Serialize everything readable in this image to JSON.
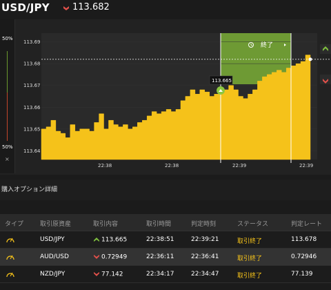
{
  "header": {
    "pair": "USD/JPY",
    "direction_icon": "down-arrow-icon",
    "rate": "113.682"
  },
  "gauge": {
    "top_label": "50%",
    "bottom_label": "50%",
    "close_glyph": "×",
    "high_color": "#6c9a2e",
    "low_color": "#c4452b"
  },
  "chart": {
    "y_ticks": [
      "113.69",
      "113.68",
      "113.67",
      "113.66",
      "113.65",
      "113.64"
    ],
    "x_ticks": [
      "22:38",
      "22:38",
      "22:39",
      "22:39"
    ],
    "entry_label": "113.665",
    "end_label": "終了",
    "area_color": "#f5c21a",
    "window_color": "#6e9a34"
  },
  "chart_data": {
    "type": "area",
    "x_ticks": [
      "22:38",
      "22:38",
      "22:39",
      "22:39"
    ],
    "y_ticks": [
      113.69,
      113.68,
      113.67,
      113.66,
      113.65,
      113.64
    ],
    "ylim": [
      113.636,
      113.694
    ],
    "current_rate": 113.682,
    "entry_rate": 113.665,
    "values": [
      113.65,
      113.651,
      113.654,
      113.649,
      113.648,
      113.646,
      113.652,
      113.649,
      113.65,
      113.65,
      113.649,
      113.653,
      113.657,
      113.65,
      113.654,
      113.652,
      113.651,
      113.652,
      113.65,
      113.651,
      113.653,
      113.654,
      113.656,
      113.658,
      113.657,
      113.658,
      113.659,
      113.658,
      113.659,
      113.663,
      113.665,
      113.668,
      113.666,
      113.668,
      113.667,
      113.665,
      113.666,
      113.667,
      113.668,
      113.67,
      113.668,
      113.665,
      113.664,
      113.666,
      113.668,
      113.672,
      113.674,
      113.675,
      113.676,
      113.677,
      113.676,
      113.678,
      113.679,
      113.68,
      113.681,
      113.684,
      113.682
    ]
  },
  "section": {
    "title": "購入オプション詳細"
  },
  "table": {
    "headers": [
      "タイプ",
      "取引原資産",
      "取引内容",
      "取引時間",
      "判定時刻",
      "ステータス",
      "判定レート"
    ],
    "rows": [
      {
        "type_icon": "gauge-icon",
        "asset": "USD/JPY",
        "direction": "up",
        "content": "113.665",
        "trade_time": "22:38:51",
        "judge_time": "22:39:21",
        "status": "取引終了",
        "judge_rate": "113.678"
      },
      {
        "type_icon": "gauge-icon",
        "asset": "AUD/USD",
        "direction": "down",
        "content": "0.72949",
        "trade_time": "22:36:11",
        "judge_time": "22:36:41",
        "status": "取引終了",
        "judge_rate": "0.72946"
      },
      {
        "type_icon": "gauge-icon",
        "asset": "NZD/JPY",
        "direction": "down",
        "content": "77.142",
        "trade_time": "22:34:17",
        "judge_time": "22:34:47",
        "status": "取引終了",
        "judge_rate": "77.139"
      }
    ],
    "up_color": "#7fbf3f",
    "down_color": "#e0504a"
  }
}
